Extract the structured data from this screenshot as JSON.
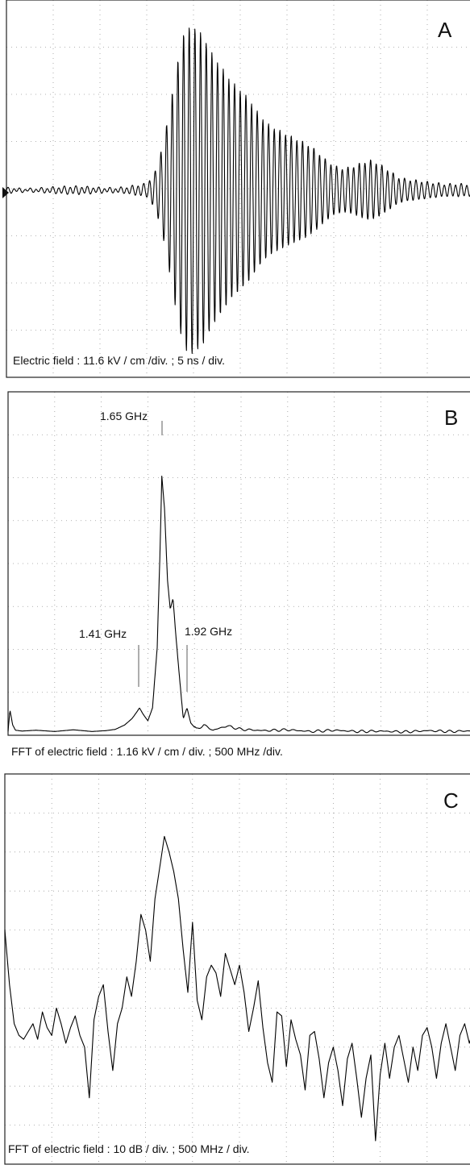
{
  "chart_data": [
    {
      "type": "line",
      "panel_label": "A",
      "caption": "Electric field : 11.6 kV / cm /div. ; 5 ns / div.",
      "x_divisions": 10,
      "y_divisions": 8,
      "marker": "ground-reference",
      "series": [
        {
          "x": [
            0,
            0.5,
            1,
            1.5,
            2,
            2.5,
            3,
            3.2,
            3.4,
            3.6,
            3.8,
            4,
            4.2,
            4.4,
            4.6,
            4.8,
            5,
            5.2,
            5.4,
            5.6,
            5.8,
            6,
            6.2,
            6.4,
            6.6,
            6.8,
            7,
            7.2,
            7.4,
            7.6,
            7.8,
            8,
            8.2,
            8.4,
            8.6,
            8.8,
            9,
            9.2,
            9.4,
            9.6,
            9.8,
            10
          ],
          "envelope": [
            0.05,
            0.05,
            0.05,
            0.06,
            0.06,
            0.07,
            0.12,
            0.4,
            1.2,
            2.4,
            3.4,
            3.5,
            3.3,
            2.9,
            2.6,
            2.3,
            2.1,
            1.9,
            1.6,
            1.4,
            1.3,
            1.2,
            1.1,
            1.0,
            0.85,
            0.65,
            0.5,
            0.45,
            0.5,
            0.6,
            0.65,
            0.55,
            0.4,
            0.25,
            0.2,
            0.18,
            0.16,
            0.15,
            0.14,
            0.15,
            0.14,
            0.12
          ],
          "carrier_cycles_per_div": 8.25
        }
      ]
    },
    {
      "type": "line",
      "panel_label": "B",
      "caption": "FFT of electric field : 1.16 kV / cm / div. ; 500 MHz /div.",
      "x_divisions": 10,
      "y_divisions": 8,
      "annotations": [
        {
          "text": "1.65 GHz",
          "x": 1.65
        },
        {
          "text": "1.41 GHz",
          "x": 1.41
        },
        {
          "text": "1.92 GHz",
          "x": 1.92
        }
      ],
      "series": [
        {
          "x": [
            0.0,
            0.02,
            0.05,
            0.08,
            0.15,
            0.3,
            0.5,
            0.7,
            0.9,
            1.05,
            1.15,
            1.25,
            1.33,
            1.38,
            1.41,
            1.45,
            1.5,
            1.55,
            1.6,
            1.63,
            1.65,
            1.68,
            1.71,
            1.74,
            1.77,
            1.8,
            1.84,
            1.88,
            1.92,
            1.96,
            2.02,
            2.1,
            2.2,
            2.35,
            2.5,
            2.75,
            3.0,
            3.25,
            3.5,
            3.75,
            4.0,
            4.25,
            4.5,
            4.75,
            5.0
          ],
          "y": [
            0.05,
            0.55,
            0.2,
            0.08,
            0.06,
            0.08,
            0.05,
            0.09,
            0.05,
            0.07,
            0.1,
            0.2,
            0.35,
            0.5,
            0.6,
            0.45,
            0.3,
            0.6,
            2.0,
            4.2,
            6.0,
            5.2,
            3.6,
            2.9,
            3.15,
            2.3,
            1.3,
            0.35,
            0.6,
            0.25,
            0.1,
            0.2,
            0.08,
            0.18,
            0.1,
            0.07,
            0.09,
            0.05,
            0.08,
            0.05,
            0.06,
            0.04,
            0.07,
            0.05,
            0.07
          ]
        }
      ]
    },
    {
      "type": "line",
      "panel_label": "C",
      "caption": "FFT of electric field : 10 dB / div. ; 500 MHz / div.",
      "x_divisions": 10,
      "y_divisions": 10,
      "series": [
        {
          "x": [
            0.0,
            0.05,
            0.1,
            0.15,
            0.2,
            0.25,
            0.3,
            0.35,
            0.4,
            0.45,
            0.5,
            0.55,
            0.6,
            0.65,
            0.7,
            0.75,
            0.8,
            0.85,
            0.9,
            0.95,
            1.0,
            1.05,
            1.1,
            1.15,
            1.2,
            1.25,
            1.3,
            1.35,
            1.4,
            1.45,
            1.5,
            1.55,
            1.6,
            1.65,
            1.7,
            1.75,
            1.8,
            1.85,
            1.9,
            1.95,
            2.0,
            2.05,
            2.1,
            2.15,
            2.2,
            2.25,
            2.3,
            2.35,
            2.4,
            2.45,
            2.5,
            2.55,
            2.6,
            2.65,
            2.7,
            2.75,
            2.8,
            2.85,
            2.9,
            2.95,
            3.0,
            3.05,
            3.1,
            3.15,
            3.2,
            3.25,
            3.3,
            3.35,
            3.4,
            3.45,
            3.5,
            3.55,
            3.6,
            3.65,
            3.7,
            3.75,
            3.8,
            3.85,
            3.9,
            3.95,
            4.0,
            4.05,
            4.1,
            4.15,
            4.2,
            4.25,
            4.3,
            4.35,
            4.4,
            4.45,
            4.5,
            4.55,
            4.6,
            4.65,
            4.7,
            4.75,
            4.8,
            4.85,
            4.9,
            4.95,
            5.0
          ],
          "y": [
            6.0,
            4.6,
            3.6,
            3.3,
            3.2,
            3.4,
            3.6,
            3.2,
            3.9,
            3.5,
            3.3,
            4.0,
            3.6,
            3.1,
            3.5,
            3.8,
            3.3,
            3.0,
            1.7,
            3.7,
            4.3,
            4.6,
            3.4,
            2.4,
            3.6,
            4.0,
            4.8,
            4.3,
            5.2,
            6.4,
            6.0,
            5.2,
            6.8,
            7.6,
            8.4,
            8.0,
            7.5,
            6.8,
            5.5,
            4.4,
            6.2,
            4.2,
            3.7,
            4.8,
            5.1,
            4.9,
            4.3,
            5.4,
            5.0,
            4.6,
            5.1,
            4.4,
            3.4,
            4.0,
            4.7,
            3.5,
            2.6,
            2.1,
            3.9,
            3.8,
            2.5,
            3.7,
            3.2,
            2.8,
            1.9,
            3.3,
            3.4,
            2.7,
            1.7,
            2.6,
            3.0,
            2.4,
            1.5,
            2.7,
            3.1,
            2.2,
            1.2,
            2.2,
            2.8,
            0.6,
            2.3,
            3.1,
            2.2,
            3.0,
            3.3,
            2.7,
            2.1,
            3.0,
            2.4,
            3.3,
            3.5,
            3.0,
            2.2,
            3.1,
            3.6,
            3.0,
            2.4,
            3.3,
            3.6,
            3.1,
            3.5
          ]
        }
      ]
    }
  ]
}
